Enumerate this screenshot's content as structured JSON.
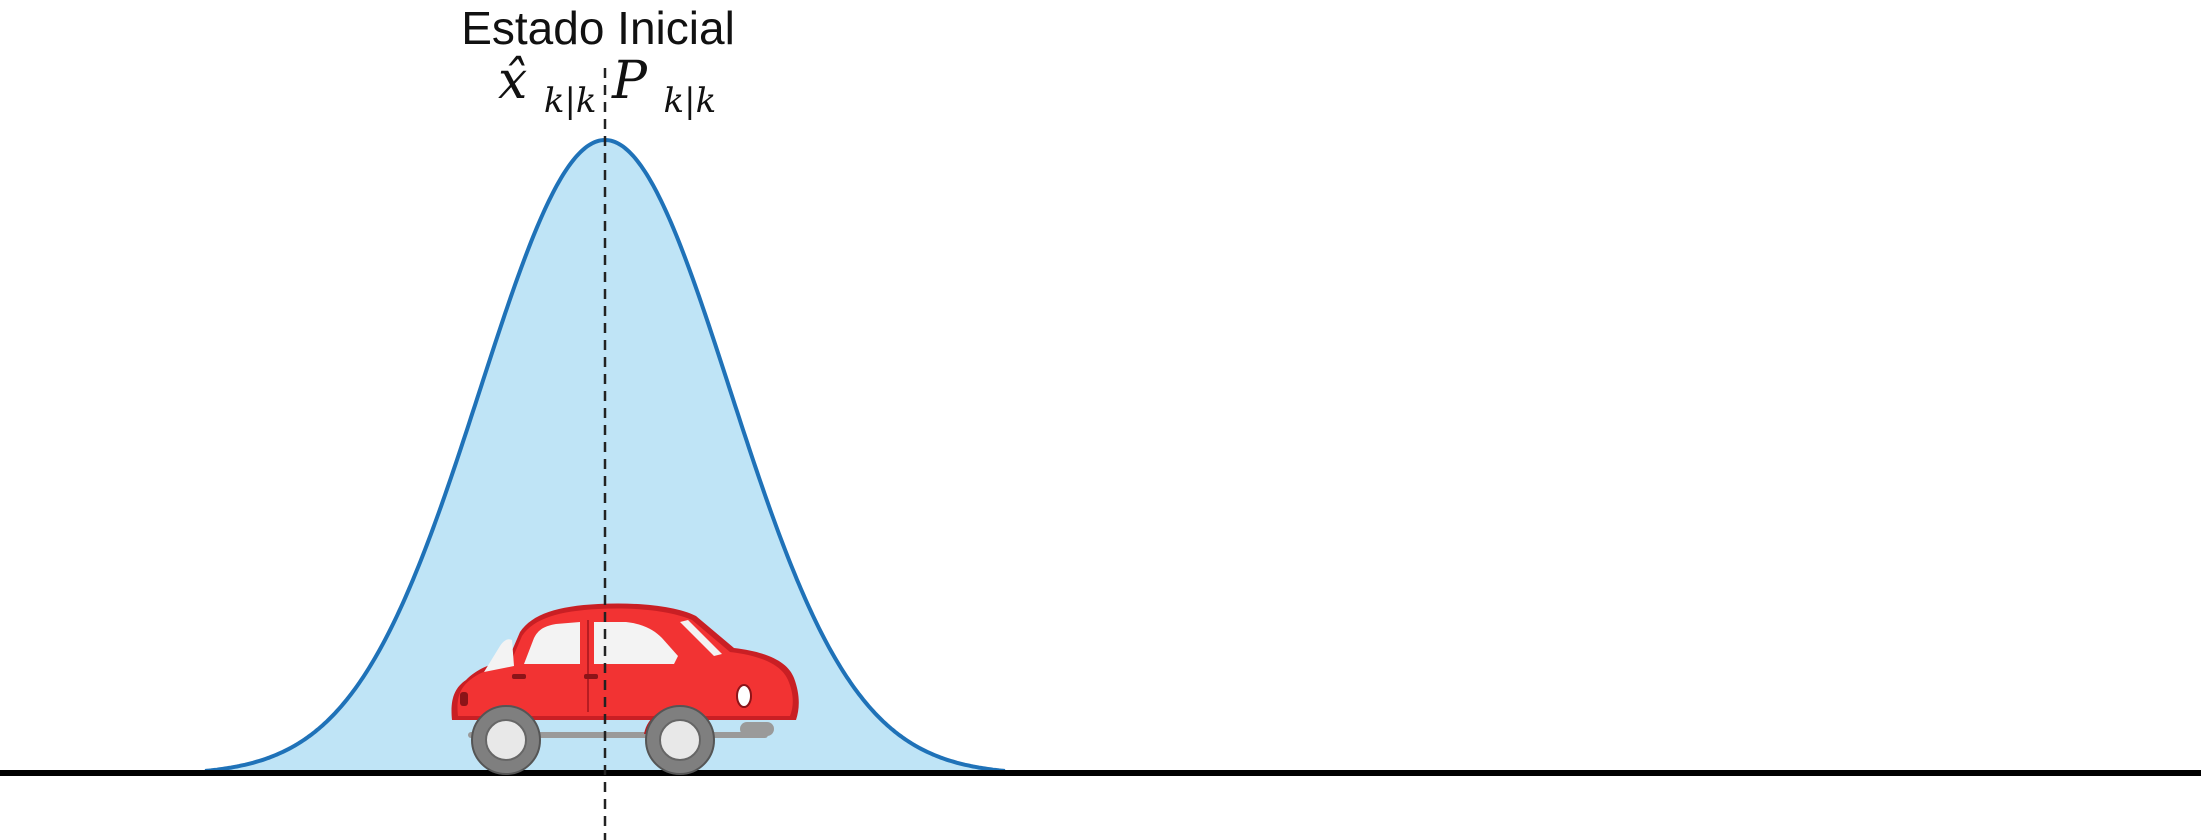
{
  "title": "Estado Inicial",
  "state_label": {
    "symbol": "x̂",
    "subscript": "k|k"
  },
  "covariance_label": {
    "symbol": "P",
    "subscript": "k|k"
  },
  "colors": {
    "curve_stroke": "#1f72b8",
    "curve_fill": "#bfe4f6",
    "ground": "#000000",
    "mean_line": "#222222",
    "car_body": "#f23333",
    "car_body_shadow": "#c91f24",
    "car_window": "#f3f3f3",
    "tire": "#7f7f7f",
    "hubcap": "#e8e8e8",
    "bumper": "#9a9a9a"
  },
  "icons": {
    "car": "car-icon"
  }
}
